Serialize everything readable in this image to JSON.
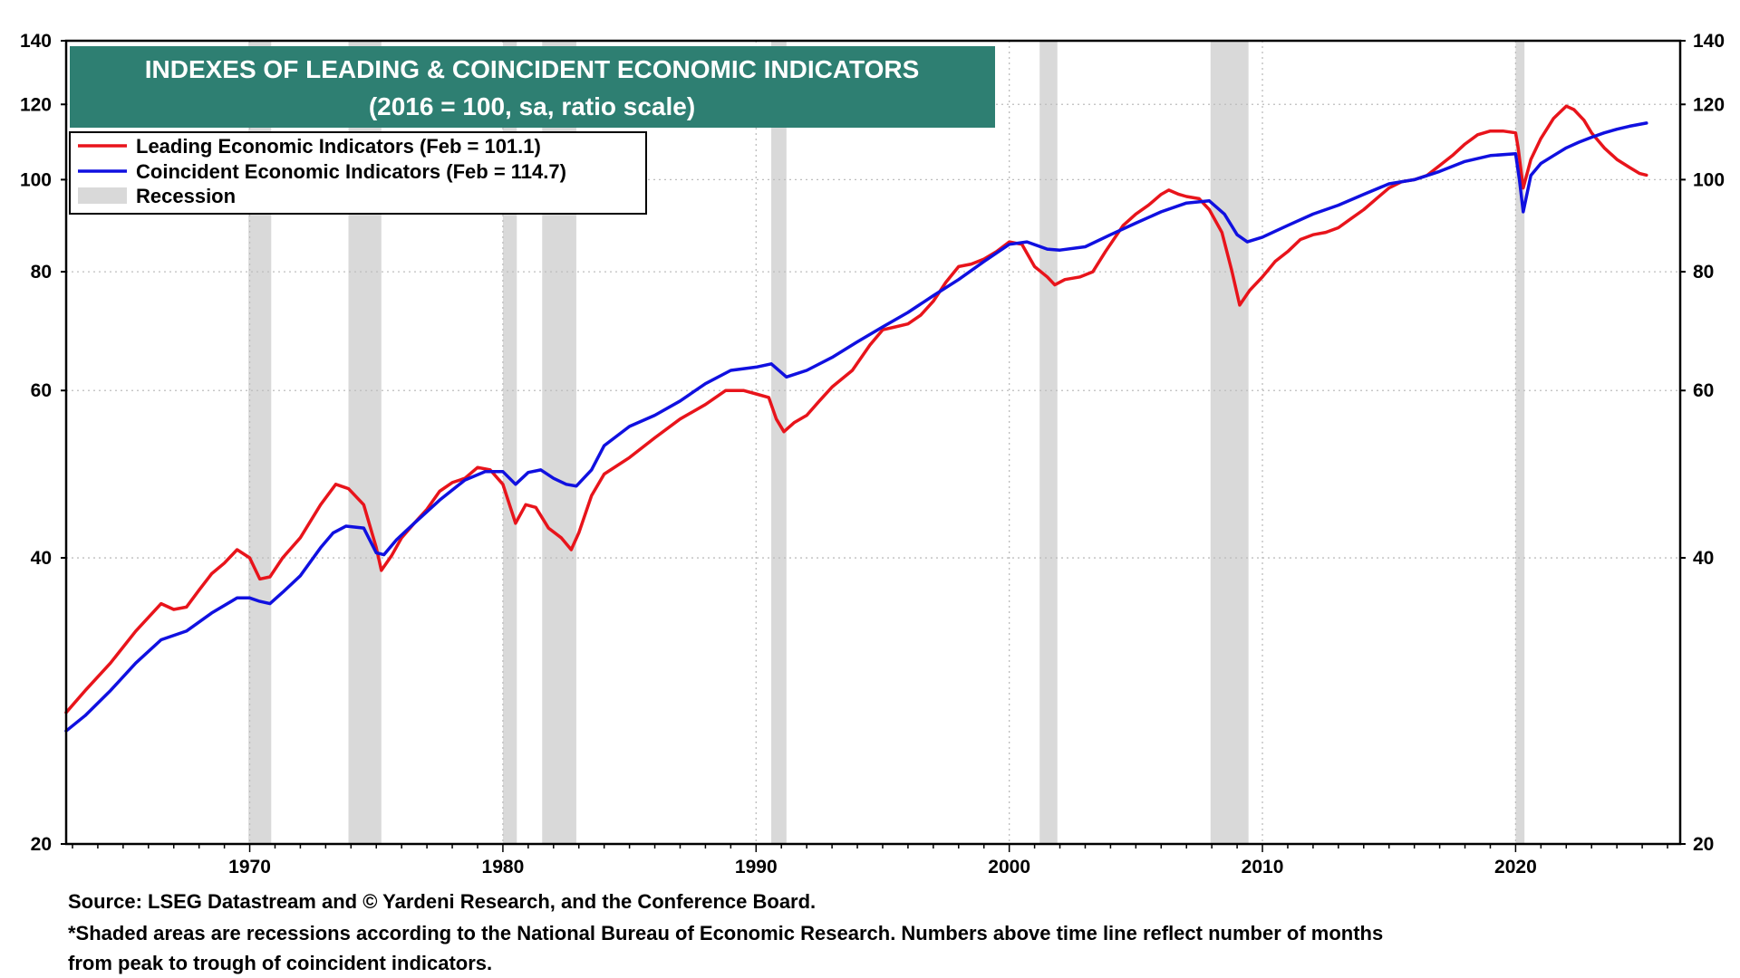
{
  "chart_data": {
    "type": "line",
    "title": "INDEXES OF LEADING & COINCIDENT ECONOMIC INDICATORS",
    "subtitle": "(2016 = 100, sa, ratio scale)",
    "y_scale": "log",
    "ylim": [
      20,
      140
    ],
    "xlim": [
      1962.75,
      2026.5
    ],
    "y_ticks": [
      20,
      40,
      60,
      80,
      100,
      120,
      140
    ],
    "x_ticks": [
      1970,
      1980,
      1990,
      2000,
      2010,
      2020
    ],
    "grid": true,
    "legend_position": "top-left",
    "legend": [
      {
        "label": "Leading Economic Indicators (Feb = 101.1)",
        "color": "#e8141b",
        "kind": "line"
      },
      {
        "label": "Coincident Economic Indicators (Feb = 114.7)",
        "color": "#1010e0",
        "kind": "line"
      },
      {
        "label": "Recession",
        "color": "#d9d9d9",
        "kind": "band"
      }
    ],
    "recessions": [
      [
        1969.95,
        1970.85
      ],
      [
        1973.9,
        1975.2
      ],
      [
        1980.0,
        1980.55
      ],
      [
        1981.55,
        1982.9
      ],
      [
        1990.6,
        1991.2
      ],
      [
        2001.2,
        2001.9
      ],
      [
        2007.95,
        2009.45
      ],
      [
        2020.0,
        2020.35
      ]
    ],
    "series": [
      {
        "name": "Leading Economic Indicators",
        "color": "#e8141b",
        "points": [
          [
            1962.75,
            27.5
          ],
          [
            1963.5,
            29.0
          ],
          [
            1964.5,
            31.0
          ],
          [
            1965.5,
            33.5
          ],
          [
            1966.5,
            35.8
          ],
          [
            1967.0,
            35.3
          ],
          [
            1967.5,
            35.5
          ],
          [
            1968.0,
            37.0
          ],
          [
            1968.5,
            38.5
          ],
          [
            1969.0,
            39.5
          ],
          [
            1969.5,
            40.8
          ],
          [
            1970.0,
            40.0
          ],
          [
            1970.4,
            38.0
          ],
          [
            1970.8,
            38.2
          ],
          [
            1971.3,
            40.0
          ],
          [
            1972.0,
            42.0
          ],
          [
            1972.8,
            45.5
          ],
          [
            1973.4,
            47.8
          ],
          [
            1973.9,
            47.3
          ],
          [
            1974.5,
            45.5
          ],
          [
            1975.0,
            41.0
          ],
          [
            1975.2,
            38.8
          ],
          [
            1975.6,
            40.2
          ],
          [
            1976.0,
            42.0
          ],
          [
            1976.5,
            43.5
          ],
          [
            1977.0,
            45.0
          ],
          [
            1977.5,
            47.0
          ],
          [
            1978.0,
            48.0
          ],
          [
            1978.5,
            48.5
          ],
          [
            1979.0,
            49.8
          ],
          [
            1979.5,
            49.5
          ],
          [
            1980.0,
            47.8
          ],
          [
            1980.5,
            43.5
          ],
          [
            1980.9,
            45.5
          ],
          [
            1981.3,
            45.2
          ],
          [
            1981.8,
            43.0
          ],
          [
            1982.3,
            42.0
          ],
          [
            1982.7,
            40.8
          ],
          [
            1983.0,
            42.5
          ],
          [
            1983.5,
            46.5
          ],
          [
            1984.0,
            49.0
          ],
          [
            1985.0,
            51.0
          ],
          [
            1986.0,
            53.5
          ],
          [
            1987.0,
            56.0
          ],
          [
            1988.0,
            58.0
          ],
          [
            1988.8,
            60.0
          ],
          [
            1989.5,
            60.0
          ],
          [
            1990.0,
            59.5
          ],
          [
            1990.5,
            59.0
          ],
          [
            1990.8,
            56.0
          ],
          [
            1991.1,
            54.3
          ],
          [
            1991.5,
            55.5
          ],
          [
            1992.0,
            56.5
          ],
          [
            1992.5,
            58.5
          ],
          [
            1993.0,
            60.5
          ],
          [
            1993.8,
            63.0
          ],
          [
            1994.5,
            67.0
          ],
          [
            1995.0,
            69.5
          ],
          [
            1995.5,
            70.0
          ],
          [
            1996.0,
            70.5
          ],
          [
            1996.5,
            72.0
          ],
          [
            1997.0,
            74.5
          ],
          [
            1997.5,
            78.0
          ],
          [
            1998.0,
            81.0
          ],
          [
            1998.5,
            81.5
          ],
          [
            1999.0,
            82.5
          ],
          [
            1999.5,
            84.0
          ],
          [
            2000.0,
            86.0
          ],
          [
            2000.5,
            85.5
          ],
          [
            2001.0,
            81.0
          ],
          [
            2001.5,
            79.0
          ],
          [
            2001.8,
            77.5
          ],
          [
            2002.2,
            78.5
          ],
          [
            2002.8,
            79.0
          ],
          [
            2003.3,
            80.0
          ],
          [
            2003.8,
            84.0
          ],
          [
            2004.5,
            89.5
          ],
          [
            2005.0,
            92.0
          ],
          [
            2005.5,
            94.0
          ],
          [
            2006.0,
            96.5
          ],
          [
            2006.3,
            97.5
          ],
          [
            2006.7,
            96.5
          ],
          [
            2007.0,
            96.0
          ],
          [
            2007.5,
            95.5
          ],
          [
            2007.9,
            93.0
          ],
          [
            2008.4,
            88.0
          ],
          [
            2008.8,
            80.0
          ],
          [
            2009.1,
            73.8
          ],
          [
            2009.5,
            76.5
          ],
          [
            2010.0,
            79.0
          ],
          [
            2010.5,
            82.0
          ],
          [
            2011.0,
            84.0
          ],
          [
            2011.5,
            86.5
          ],
          [
            2012.0,
            87.5
          ],
          [
            2012.5,
            88.0
          ],
          [
            2013.0,
            89.0
          ],
          [
            2013.5,
            91.0
          ],
          [
            2014.0,
            93.0
          ],
          [
            2014.5,
            95.5
          ],
          [
            2015.0,
            98.0
          ],
          [
            2015.5,
            99.5
          ],
          [
            2016.0,
            100.0
          ],
          [
            2016.5,
            101.0
          ],
          [
            2017.0,
            103.5
          ],
          [
            2017.5,
            106.0
          ],
          [
            2018.0,
            109.0
          ],
          [
            2018.5,
            111.5
          ],
          [
            2019.0,
            112.5
          ],
          [
            2019.5,
            112.5
          ],
          [
            2020.0,
            112.0
          ],
          [
            2020.1,
            108.0
          ],
          [
            2020.3,
            98.0
          ],
          [
            2020.6,
            105.0
          ],
          [
            2021.0,
            110.5
          ],
          [
            2021.5,
            116.0
          ],
          [
            2022.0,
            119.5
          ],
          [
            2022.3,
            118.5
          ],
          [
            2022.7,
            115.5
          ],
          [
            2023.0,
            112.0
          ],
          [
            2023.5,
            108.0
          ],
          [
            2024.0,
            105.0
          ],
          [
            2024.5,
            103.0
          ],
          [
            2024.9,
            101.5
          ],
          [
            2025.17,
            101.1
          ]
        ]
      },
      {
        "name": "Coincident Economic Indicators",
        "color": "#1010e0",
        "points": [
          [
            1962.75,
            26.3
          ],
          [
            1963.5,
            27.3
          ],
          [
            1964.5,
            29.0
          ],
          [
            1965.5,
            31.0
          ],
          [
            1966.5,
            32.8
          ],
          [
            1967.5,
            33.5
          ],
          [
            1968.5,
            35.0
          ],
          [
            1969.5,
            36.3
          ],
          [
            1970.0,
            36.3
          ],
          [
            1970.4,
            36.0
          ],
          [
            1970.8,
            35.8
          ],
          [
            1971.3,
            36.8
          ],
          [
            1972.0,
            38.3
          ],
          [
            1972.8,
            41.0
          ],
          [
            1973.3,
            42.5
          ],
          [
            1973.8,
            43.2
          ],
          [
            1974.5,
            43.0
          ],
          [
            1975.0,
            40.5
          ],
          [
            1975.3,
            40.3
          ],
          [
            1975.8,
            41.8
          ],
          [
            1976.5,
            43.5
          ],
          [
            1977.5,
            46.0
          ],
          [
            1978.5,
            48.3
          ],
          [
            1979.3,
            49.3
          ],
          [
            1980.0,
            49.3
          ],
          [
            1980.5,
            47.8
          ],
          [
            1981.0,
            49.2
          ],
          [
            1981.5,
            49.5
          ],
          [
            1982.0,
            48.5
          ],
          [
            1982.5,
            47.8
          ],
          [
            1982.9,
            47.6
          ],
          [
            1983.5,
            49.5
          ],
          [
            1984.0,
            52.5
          ],
          [
            1985.0,
            55.0
          ],
          [
            1986.0,
            56.5
          ],
          [
            1987.0,
            58.5
          ],
          [
            1988.0,
            61.0
          ],
          [
            1989.0,
            63.0
          ],
          [
            1990.0,
            63.5
          ],
          [
            1990.6,
            64.0
          ],
          [
            1991.2,
            62.0
          ],
          [
            1992.0,
            63.0
          ],
          [
            1993.0,
            65.0
          ],
          [
            1994.0,
            67.5
          ],
          [
            1995.0,
            70.0
          ],
          [
            1996.0,
            72.5
          ],
          [
            1997.0,
            75.5
          ],
          [
            1998.0,
            78.5
          ],
          [
            1999.0,
            82.0
          ],
          [
            2000.0,
            85.5
          ],
          [
            2000.7,
            86.0
          ],
          [
            2001.5,
            84.5
          ],
          [
            2002.0,
            84.3
          ],
          [
            2003.0,
            85.0
          ],
          [
            2004.0,
            87.5
          ],
          [
            2005.0,
            90.0
          ],
          [
            2006.0,
            92.5
          ],
          [
            2007.0,
            94.5
          ],
          [
            2007.9,
            95.0
          ],
          [
            2008.5,
            92.0
          ],
          [
            2009.0,
            87.5
          ],
          [
            2009.4,
            86.0
          ],
          [
            2010.0,
            87.0
          ],
          [
            2011.0,
            89.5
          ],
          [
            2012.0,
            92.0
          ],
          [
            2013.0,
            94.0
          ],
          [
            2014.0,
            96.5
          ],
          [
            2015.0,
            99.0
          ],
          [
            2016.0,
            100.0
          ],
          [
            2017.0,
            102.0
          ],
          [
            2018.0,
            104.5
          ],
          [
            2019.0,
            106.0
          ],
          [
            2020.0,
            106.5
          ],
          [
            2020.15,
            100.0
          ],
          [
            2020.3,
            92.5
          ],
          [
            2020.6,
            101.0
          ],
          [
            2021.0,
            104.0
          ],
          [
            2021.5,
            106.0
          ],
          [
            2022.0,
            108.0
          ],
          [
            2022.5,
            109.5
          ],
          [
            2023.0,
            110.8
          ],
          [
            2023.5,
            112.0
          ],
          [
            2024.0,
            113.0
          ],
          [
            2024.5,
            113.8
          ],
          [
            2025.17,
            114.7
          ]
        ]
      }
    ]
  },
  "footnotes": {
    "source": "Source: LSEG Datastream and © Yardeni Research, and the Conference Board.",
    "note_line1": "*Shaded areas are recessions according to the National Bureau of Economic Research. Numbers above time line reflect number of months",
    "note_line2": "from peak to trough of coincident indicators."
  },
  "colors": {
    "title_bg": "#2e7f72",
    "title_text": "#ffffff",
    "grid": "#bdbdbd",
    "recession": "#d9d9d9"
  }
}
